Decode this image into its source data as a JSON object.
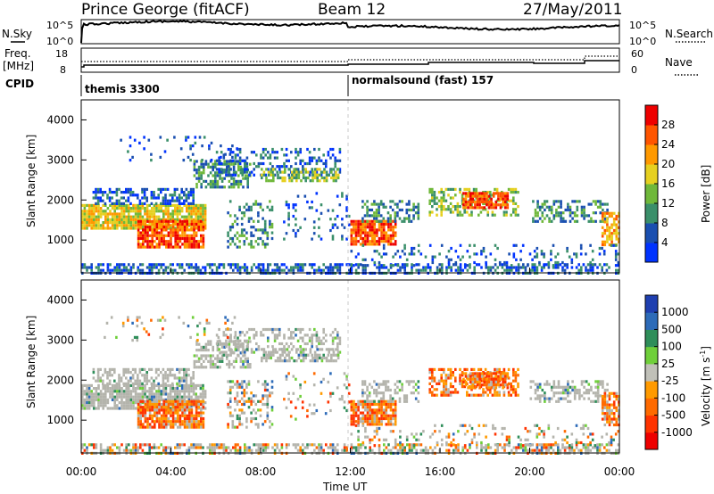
{
  "header": {
    "station": "Prince George (fitACF)",
    "beam": "Beam 12",
    "date": "27/May/2011"
  },
  "noise_panel": {
    "left_label": "N.Sky",
    "right_label": "N.Search",
    "left_ticks": [
      "10^5",
      "10^0"
    ],
    "right_ticks": [
      "10^5",
      "10^0"
    ]
  },
  "freq_panel": {
    "left_label_1": "Freq.",
    "left_label_2": "[MHz]",
    "right_label": "Nave",
    "left_ticks": [
      "18",
      "8"
    ],
    "right_ticks": [
      "60",
      "0"
    ]
  },
  "cpid_panel": {
    "label": "CPID",
    "segments": [
      {
        "label": "themis 3300",
        "start_hour": 0,
        "end_hour": 12
      },
      {
        "label": "normalsound (fast) 157",
        "start_hour": 12,
        "end_hour": 24
      }
    ]
  },
  "x_axis": {
    "label": "Time UT",
    "ticks": [
      "00:00",
      "04:00",
      "08:00",
      "12:00",
      "16:00",
      "20:00",
      "00:00"
    ]
  },
  "colors": {
    "power_scale": [
      "#0033ff",
      "#1a4fb0",
      "#3a8f6a",
      "#6fb83a",
      "#e6d020",
      "#ff9900",
      "#ff5500",
      "#ee0000"
    ],
    "velocity_scale": [
      "#1f3fb0",
      "#2d6bb8",
      "#2f8e5a",
      "#6fcf3a",
      "#c0c0b8",
      "#ff9a00",
      "#ff6a00",
      "#ff3300",
      "#ee0000"
    ],
    "ground_scatter": "#b4b4ac"
  },
  "chart_data": [
    {
      "type": "heatmap",
      "name": "power",
      "ylabel": "Slant Range [km]",
      "yticks": [
        "4000",
        "3000",
        "2000",
        "1000"
      ],
      "ylim": [
        180,
        4500
      ],
      "xlim": [
        0,
        24
      ],
      "colorbar_label": "Power [dB]",
      "colorbar_ticks": [
        "28",
        "24",
        "20",
        "16",
        "12",
        "8",
        "4"
      ],
      "colorbar_range": [
        0,
        32
      ]
    },
    {
      "type": "heatmap",
      "name": "velocity",
      "ylabel": "Slant Range [km]",
      "yticks": [
        "4000",
        "3000",
        "2000",
        "1000"
      ],
      "ylim": [
        180,
        4500
      ],
      "xlim": [
        0,
        24
      ],
      "colorbar_label": "Velocity [m s",
      "colorbar_label_sup": "-1",
      "colorbar_label_end": "]",
      "colorbar_ticks": [
        "1000",
        "500",
        "100",
        "25",
        "-25",
        "-100",
        "-500",
        "-1000"
      ]
    }
  ]
}
